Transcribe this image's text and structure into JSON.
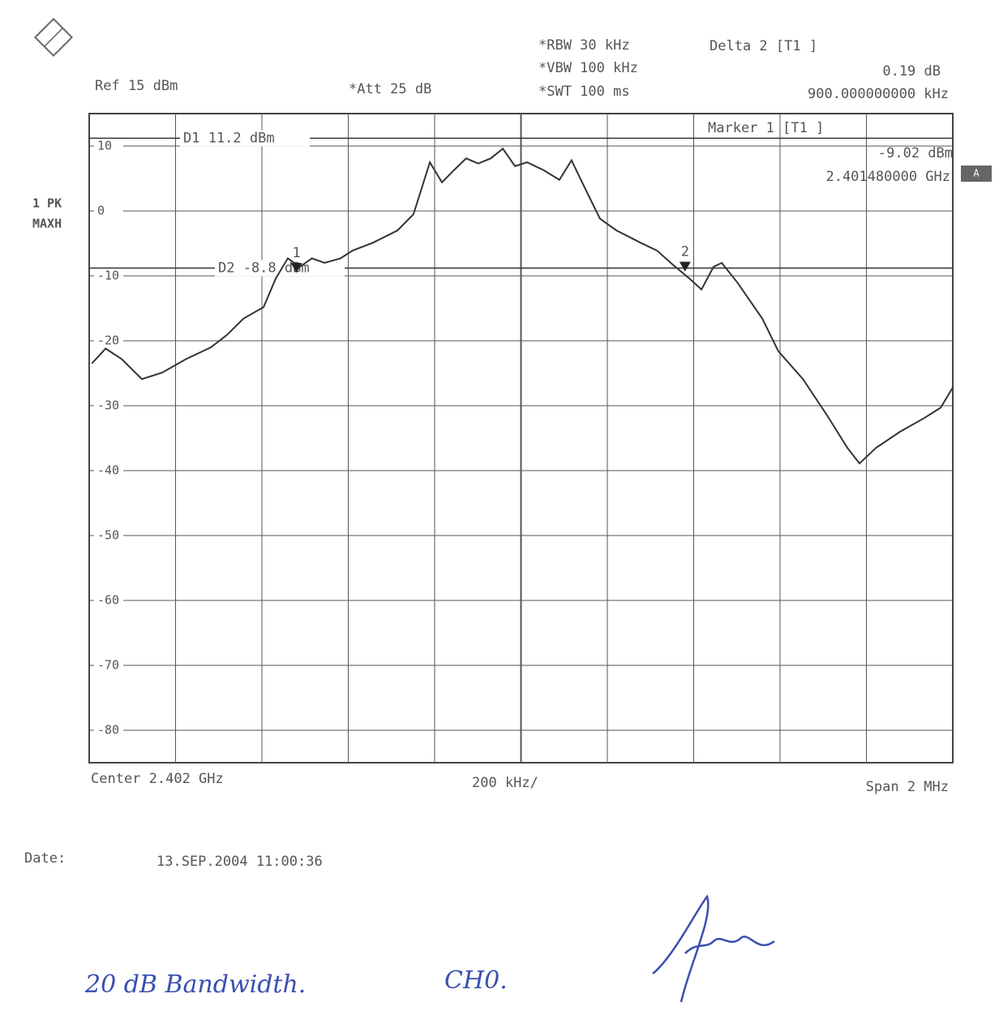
{
  "chart_data": {
    "type": "line",
    "header": {
      "ref": "Ref  15 dBm",
      "att": "*Att  25 dB",
      "rbw": "*RBW 30 kHz",
      "vbw": "*VBW 100 kHz",
      "swt": "*SWT 100 ms",
      "delta_title": "Delta 2 [T1 ]",
      "delta_level": "0.19 dB",
      "delta_freq": "900.000000000 kHz",
      "marker_title": "Marker 1 [T1 ]",
      "marker_level": "-9.02 dBm",
      "marker_freq": "2.401480000 GHz",
      "trace_mode_1": "1 PK",
      "trace_mode_2": "MAXH",
      "flag": "A"
    },
    "footer": {
      "center": "Center 2.402 GHz",
      "per_div": "200 kHz/",
      "span": "Span 2 MHz",
      "date_label": "Date:",
      "date": "13.SEP.2004  11:00:36"
    },
    "notes": [
      "20 dB  Bandwidth.",
      "CH0."
    ],
    "xlim": [
      2.401,
      2.403
    ],
    "ylim": [
      -85,
      15
    ],
    "yticks": [
      10,
      0,
      -10,
      -20,
      -30,
      -40,
      -50,
      -60,
      -70,
      -80
    ],
    "grid": true,
    "x": [
      2.401006,
      2.401038,
      2.401075,
      2.401122,
      2.401169,
      2.401225,
      2.401282,
      2.401319,
      2.401357,
      2.401404,
      2.401432,
      2.40146,
      2.401488,
      2.401516,
      2.401545,
      2.401582,
      2.40161,
      2.401657,
      2.401714,
      2.401751,
      2.401789,
      2.401817,
      2.401845,
      2.401873,
      2.401901,
      2.40193,
      2.401958,
      2.401986,
      2.402014,
      2.402052,
      2.402089,
      2.402117,
      2.402146,
      2.402183,
      2.402221,
      2.402277,
      2.402315,
      2.402352,
      2.40239,
      2.402418,
      2.402446,
      2.402465,
      2.402502,
      2.402559,
      2.402596,
      2.402653,
      2.402709,
      2.402756,
      2.402784,
      2.402822,
      2.402878,
      2.402934,
      2.402972,
      2.403
    ],
    "series": [
      {
        "color": "#333333",
        "values": [
          -23.5,
          -21.2,
          -22.8,
          -25.9,
          -24.9,
          -22.8,
          -21.0,
          -19.1,
          -16.6,
          -14.8,
          -10.4,
          -7.3,
          -8.6,
          -7.3,
          -8.0,
          -7.3,
          -6.1,
          -4.9,
          -3.0,
          -0.5,
          7.5,
          4.4,
          6.3,
          8.1,
          7.3,
          8.1,
          9.6,
          6.9,
          7.5,
          6.3,
          4.8,
          7.8,
          3.8,
          -1.2,
          -3.0,
          -4.9,
          -6.1,
          -8.3,
          -10.4,
          -12.1,
          -8.6,
          -8.0,
          -11.1,
          -16.6,
          -21.6,
          -25.9,
          -31.5,
          -36.5,
          -38.9,
          -36.5,
          -34.0,
          -31.9,
          -30.3,
          -27.2
        ]
      }
    ],
    "reference_lines": [
      {
        "value": 11.2,
        "label": "D1 11.2 dBm"
      },
      {
        "value": -8.8,
        "label": "D2 -8.8 dBm"
      }
    ],
    "markers": [
      {
        "label": "1",
        "x": 2.40148,
        "y": -9.02
      },
      {
        "label": "2",
        "x": 2.40238,
        "y": -8.83
      }
    ]
  }
}
